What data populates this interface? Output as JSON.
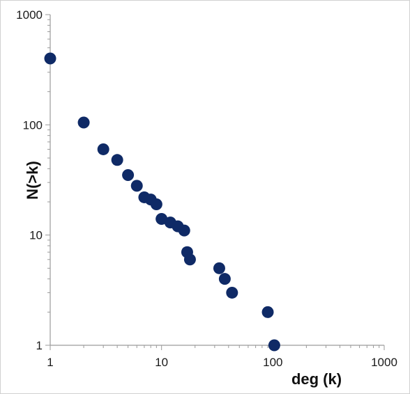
{
  "chart_data": {
    "type": "scatter",
    "xlabel": "deg (k)",
    "ylabel": "N(>k)",
    "x_scale": "log",
    "y_scale": "log",
    "xlim": [
      1,
      1000
    ],
    "ylim": [
      1,
      1000
    ],
    "x_ticks": [
      "1",
      "10",
      "100",
      "1000"
    ],
    "y_ticks": [
      "1",
      "10",
      "100",
      "1000"
    ],
    "grid": false,
    "marker_color": "#0f2a66",
    "series": [
      {
        "points": [
          {
            "x": 1,
            "y": 400
          },
          {
            "x": 2,
            "y": 105
          },
          {
            "x": 3,
            "y": 60
          },
          {
            "x": 4,
            "y": 48
          },
          {
            "x": 5,
            "y": 35
          },
          {
            "x": 6,
            "y": 28
          },
          {
            "x": 7,
            "y": 22
          },
          {
            "x": 8,
            "y": 21
          },
          {
            "x": 9,
            "y": 19
          },
          {
            "x": 10,
            "y": 14
          },
          {
            "x": 12,
            "y": 13
          },
          {
            "x": 14,
            "y": 12
          },
          {
            "x": 16,
            "y": 11
          },
          {
            "x": 17,
            "y": 7
          },
          {
            "x": 18,
            "y": 6
          },
          {
            "x": 33,
            "y": 5
          },
          {
            "x": 37,
            "y": 4
          },
          {
            "x": 43,
            "y": 3
          },
          {
            "x": 90,
            "y": 2
          },
          {
            "x": 103,
            "y": 1
          }
        ]
      }
    ]
  }
}
